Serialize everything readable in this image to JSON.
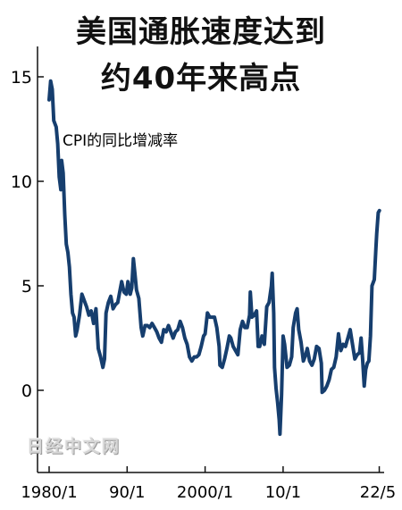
{
  "title_line1": "美国通胀速度达到",
  "title_line2": "约40年来高点",
  "watermark": "日经中文网",
  "chart_data": {
    "type": "line",
    "series": [
      {
        "values_label": "CPI的同比增减率"
      }
    ],
    "annotation": "CPI的同比增减率",
    "y_ticks": [
      "0",
      "5",
      "10",
      "15"
    ],
    "x_ticks": [
      "1980/1",
      "90/1",
      "2000/1",
      "10/1",
      "22/5"
    ],
    "ylim": [
      -3.5,
      16
    ],
    "line_color": "#163e6e",
    "points": [
      [
        1980.0,
        13.9
      ],
      [
        1980.2,
        14.8
      ],
      [
        1980.4,
        14.4
      ],
      [
        1980.6,
        12.9
      ],
      [
        1980.9,
        12.6
      ],
      [
        1981.1,
        11.8
      ],
      [
        1981.3,
        10.2
      ],
      [
        1981.5,
        9.6
      ],
      [
        1981.6,
        11.0
      ],
      [
        1981.8,
        10.4
      ],
      [
        1982.0,
        8.4
      ],
      [
        1982.2,
        7.0
      ],
      [
        1982.4,
        6.6
      ],
      [
        1982.6,
        5.9
      ],
      [
        1982.8,
        4.6
      ],
      [
        1983.0,
        3.7
      ],
      [
        1983.2,
        3.5
      ],
      [
        1983.4,
        2.6
      ],
      [
        1983.6,
        2.9
      ],
      [
        1983.9,
        3.6
      ],
      [
        1984.2,
        4.6
      ],
      [
        1984.5,
        4.3
      ],
      [
        1984.8,
        4.0
      ],
      [
        1985.1,
        3.6
      ],
      [
        1985.4,
        3.8
      ],
      [
        1985.7,
        3.2
      ],
      [
        1986.0,
        3.9
      ],
      [
        1986.3,
        2.0
      ],
      [
        1986.6,
        1.6
      ],
      [
        1986.9,
        1.1
      ],
      [
        1987.1,
        1.5
      ],
      [
        1987.3,
        3.7
      ],
      [
        1987.6,
        4.2
      ],
      [
        1987.9,
        4.5
      ],
      [
        1988.2,
        3.9
      ],
      [
        1988.5,
        4.1
      ],
      [
        1988.8,
        4.2
      ],
      [
        1989.1,
        4.8
      ],
      [
        1989.3,
        5.2
      ],
      [
        1989.6,
        4.7
      ],
      [
        1989.9,
        4.6
      ],
      [
        1990.1,
        5.2
      ],
      [
        1990.4,
        4.6
      ],
      [
        1990.6,
        4.9
      ],
      [
        1990.8,
        6.3
      ],
      [
        1991.0,
        5.6
      ],
      [
        1991.2,
        4.8
      ],
      [
        1991.5,
        4.4
      ],
      [
        1991.8,
        3.0
      ],
      [
        1992.0,
        2.6
      ],
      [
        1992.3,
        3.1
      ],
      [
        1992.6,
        3.1
      ],
      [
        1992.9,
        3.0
      ],
      [
        1993.2,
        3.2
      ],
      [
        1993.5,
        3.0
      ],
      [
        1993.8,
        2.8
      ],
      [
        1994.1,
        2.5
      ],
      [
        1994.4,
        2.3
      ],
      [
        1994.7,
        2.9
      ],
      [
        1995.0,
        2.8
      ],
      [
        1995.3,
        3.1
      ],
      [
        1995.6,
        2.8
      ],
      [
        1995.9,
        2.5
      ],
      [
        1996.2,
        2.8
      ],
      [
        1996.5,
        2.9
      ],
      [
        1996.8,
        3.3
      ],
      [
        1997.1,
        3.0
      ],
      [
        1997.4,
        2.5
      ],
      [
        1997.7,
        2.2
      ],
      [
        1998.0,
        1.6
      ],
      [
        1998.3,
        1.4
      ],
      [
        1998.6,
        1.6
      ],
      [
        1998.9,
        1.6
      ],
      [
        1999.2,
        1.7
      ],
      [
        1999.5,
        2.1
      ],
      [
        1999.8,
        2.6
      ],
      [
        2000.0,
        2.7
      ],
      [
        2000.3,
        3.7
      ],
      [
        2000.6,
        3.5
      ],
      [
        2000.9,
        3.5
      ],
      [
        2001.2,
        3.5
      ],
      [
        2001.5,
        3.0
      ],
      [
        2001.8,
        2.1
      ],
      [
        2001.9,
        1.2
      ],
      [
        2002.2,
        1.1
      ],
      [
        2002.5,
        1.5
      ],
      [
        2002.8,
        2.0
      ],
      [
        2003.1,
        2.6
      ],
      [
        2003.3,
        2.5
      ],
      [
        2003.6,
        2.1
      ],
      [
        2003.9,
        1.9
      ],
      [
        2004.2,
        1.7
      ],
      [
        2004.5,
        2.9
      ],
      [
        2004.8,
        3.3
      ],
      [
        2005.1,
        3.0
      ],
      [
        2005.4,
        3.0
      ],
      [
        2005.7,
        3.6
      ],
      [
        2005.8,
        4.7
      ],
      [
        2006.0,
        3.5
      ],
      [
        2006.3,
        3.6
      ],
      [
        2006.6,
        3.8
      ],
      [
        2006.8,
        2.1
      ],
      [
        2007.0,
        2.1
      ],
      [
        2007.3,
        2.6
      ],
      [
        2007.6,
        2.2
      ],
      [
        2007.9,
        4.0
      ],
      [
        2008.2,
        4.2
      ],
      [
        2008.5,
        5.0
      ],
      [
        2008.6,
        5.6
      ],
      [
        2008.8,
        3.7
      ],
      [
        2008.9,
        1.1
      ],
      [
        2009.1,
        0.1
      ],
      [
        2009.3,
        -0.6
      ],
      [
        2009.5,
        -1.4
      ],
      [
        2009.6,
        -2.1
      ],
      [
        2009.8,
        -0.2
      ],
      [
        2010.0,
        2.6
      ],
      [
        2010.2,
        2.2
      ],
      [
        2010.5,
        1.1
      ],
      [
        2010.8,
        1.2
      ],
      [
        2011.1,
        1.6
      ],
      [
        2011.3,
        3.0
      ],
      [
        2011.6,
        3.7
      ],
      [
        2011.8,
        3.9
      ],
      [
        2012.0,
        2.9
      ],
      [
        2012.3,
        2.3
      ],
      [
        2012.6,
        1.4
      ],
      [
        2012.9,
        1.7
      ],
      [
        2013.1,
        2.0
      ],
      [
        2013.4,
        1.4
      ],
      [
        2013.7,
        1.2
      ],
      [
        2014.0,
        1.5
      ],
      [
        2014.3,
        2.1
      ],
      [
        2014.6,
        2.0
      ],
      [
        2014.9,
        1.3
      ],
      [
        2015.0,
        -0.1
      ],
      [
        2015.3,
        0.0
      ],
      [
        2015.6,
        0.2
      ],
      [
        2015.9,
        0.5
      ],
      [
        2016.2,
        1.0
      ],
      [
        2016.5,
        1.1
      ],
      [
        2016.8,
        1.6
      ],
      [
        2017.1,
        2.7
      ],
      [
        2017.4,
        1.9
      ],
      [
        2017.7,
        2.2
      ],
      [
        2018.0,
        2.1
      ],
      [
        2018.3,
        2.5
      ],
      [
        2018.6,
        2.9
      ],
      [
        2018.9,
        2.2
      ],
      [
        2019.2,
        1.5
      ],
      [
        2019.5,
        1.7
      ],
      [
        2019.8,
        1.8
      ],
      [
        2020.0,
        2.5
      ],
      [
        2020.2,
        1.5
      ],
      [
        2020.4,
        0.2
      ],
      [
        2020.6,
        1.0
      ],
      [
        2020.8,
        1.3
      ],
      [
        2021.0,
        1.4
      ],
      [
        2021.2,
        2.6
      ],
      [
        2021.4,
        5.0
      ],
      [
        2021.7,
        5.3
      ],
      [
        2021.9,
        6.8
      ],
      [
        2022.0,
        7.5
      ],
      [
        2022.2,
        8.5
      ],
      [
        2022.35,
        8.6
      ]
    ]
  }
}
